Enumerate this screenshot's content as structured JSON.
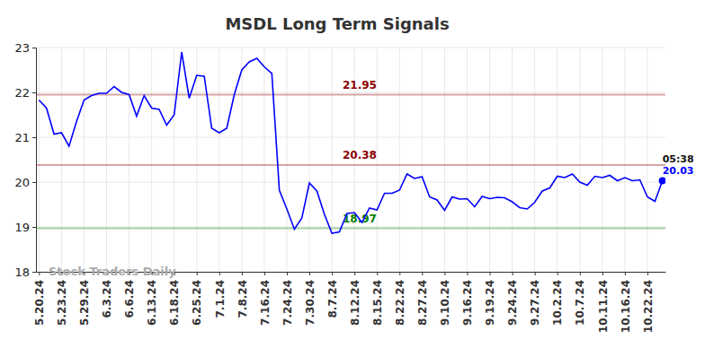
{
  "chart_data": {
    "type": "line",
    "title": "MSDL Long Term Signals",
    "watermark": "Stock Traders Daily",
    "color": "#0000ff",
    "grid": true,
    "categories": [
      "5.20.24",
      null,
      null,
      "5.23.24",
      null,
      null,
      "5.29.24",
      null,
      null,
      "6.3.24",
      null,
      null,
      "6.6.24",
      null,
      null,
      "6.13.24",
      null,
      null,
      "6.18.24",
      null,
      null,
      "6.25.24",
      null,
      null,
      "7.1.24",
      null,
      null,
      "7.8.24",
      null,
      null,
      "7.16.24",
      null,
      null,
      "7.24.24",
      null,
      null,
      "7.30.24",
      null,
      null,
      "8.7.24",
      null,
      null,
      "8.12.24",
      null,
      null,
      "8.15.24",
      null,
      null,
      "8.22.24",
      null,
      null,
      "8.27.24",
      null,
      null,
      "9.10.24",
      null,
      null,
      "9.16.24",
      null,
      null,
      "9.19.24",
      null,
      null,
      "9.24.24",
      null,
      null,
      "9.27.24",
      null,
      null,
      "10.2.24",
      null,
      null,
      "10.7.24",
      null,
      null,
      "10.11.24",
      null,
      null,
      "10.16.24",
      null,
      null,
      "10.22.24",
      null,
      null
    ],
    "values": [
      21.83,
      21.65,
      21.07,
      21.1,
      20.8,
      21.35,
      21.83,
      21.93,
      21.98,
      21.98,
      22.13,
      22.0,
      21.95,
      21.47,
      21.93,
      21.65,
      21.62,
      21.27,
      21.5,
      22.9,
      21.87,
      22.38,
      22.36,
      21.2,
      21.1,
      21.2,
      21.95,
      22.5,
      22.68,
      22.76,
      22.57,
      22.42,
      19.82,
      19.4,
      18.95,
      19.2,
      19.98,
      19.8,
      19.28,
      18.86,
      18.89,
      19.3,
      19.32,
      19.1,
      19.42,
      19.38,
      19.75,
      19.75,
      19.82,
      20.18,
      20.08,
      20.12,
      19.67,
      19.6,
      19.37,
      19.67,
      19.62,
      19.63,
      19.45,
      19.68,
      19.63,
      19.66,
      19.65,
      19.56,
      19.43,
      19.4,
      19.55,
      19.8,
      19.87,
      20.13,
      20.1,
      20.18,
      20.0,
      19.93,
      20.13,
      20.1,
      20.15,
      20.03,
      20.1,
      20.03,
      20.05,
      19.67,
      19.57,
      20.03
    ],
    "ylim": [
      18,
      23
    ],
    "yticks": [
      18,
      19,
      20,
      21,
      22,
      23
    ],
    "levels": [
      {
        "value": 21.95,
        "color": "#8b0000"
      },
      {
        "value": 20.38,
        "color": "#8b0000"
      },
      {
        "value": 18.97,
        "color": "#008000"
      }
    ],
    "last_time": "05:38"
  }
}
